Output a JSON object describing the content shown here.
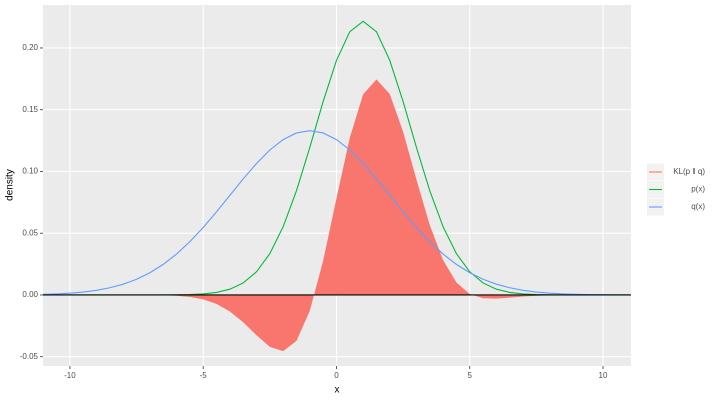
{
  "chart_data": {
    "type": "density",
    "x_label": "x",
    "y_label": "density",
    "x": [
      -11,
      -10.5,
      -10,
      -9.5,
      -9,
      -8.5,
      -8,
      -7.5,
      -7,
      -6.5,
      -6,
      -5.5,
      -5,
      -4.5,
      -4,
      -3.5,
      -3,
      -2.5,
      -2,
      -1.5,
      -1,
      -0.5,
      0,
      0.5,
      1,
      1.5,
      2,
      2.5,
      3,
      3.5,
      4,
      4.5,
      5,
      5.5,
      6,
      6.5,
      7,
      7.5,
      8,
      8.5,
      9,
      9.5,
      10,
      10.5,
      11
    ],
    "series": [
      {
        "name": "KL(p ‖ q)",
        "color": "#F8766D",
        "geom": "area",
        "values": [
          0,
          0,
          0,
          0,
          0,
          0,
          -1e-05,
          -3e-05,
          -8e-05,
          -0.00024,
          -0.00065,
          -0.0016,
          -0.00355,
          -0.00723,
          -0.01333,
          -0.02208,
          -0.03259,
          -0.042,
          -0.0455,
          -0.0372,
          -0.0128,
          0.02775,
          0.0782,
          0.1273,
          0.1624,
          0.1746,
          0.1626,
          0.1322,
          0.0935,
          0.0567,
          0.02823,
          0.01009,
          0.00078,
          -0.00261,
          -0.00293,
          -0.00215,
          -0.00127,
          -0.00065,
          -0.00029,
          -0.00012,
          -4e-05,
          -1e-05,
          0,
          0,
          0
        ]
      },
      {
        "name": "p(x)",
        "color": "#00BA38",
        "geom": "line",
        "values": [
          0,
          0,
          0,
          0,
          0,
          0,
          0,
          0,
          1e-05,
          4e-05,
          0.00012,
          0.00033,
          0.00086,
          0.00208,
          0.00468,
          0.00974,
          0.01877,
          0.03347,
          0.0553,
          0.08448,
          0.1195,
          0.1566,
          0.1899,
          0.2132,
          0.2216,
          0.2132,
          0.1899,
          0.1566,
          0.1195,
          0.08448,
          0.0553,
          0.03347,
          0.01877,
          0.00974,
          0.00468,
          0.00208,
          0.00086,
          0.00033,
          0.00012,
          4e-05,
          1e-05,
          0,
          0,
          0,
          0
        ]
      },
      {
        "name": "q(x)",
        "color": "#619CFF",
        "geom": "line",
        "values": [
          0.00051,
          0.00088,
          0.00148,
          0.0024,
          0.0038,
          0.00584,
          0.00874,
          0.01272,
          0.018,
          0.02477,
          0.03317,
          0.04319,
          0.05468,
          0.06734,
          0.08067,
          0.09398,
          0.1065,
          0.1174,
          0.1258,
          0.1312,
          0.133,
          0.1312,
          0.1258,
          0.1174,
          0.1065,
          0.094,
          0.08067,
          0.06734,
          0.05468,
          0.04319,
          0.03317,
          0.02477,
          0.018,
          0.01272,
          0.00874,
          0.00584,
          0.0038,
          0.0024,
          0.00148,
          0.00088,
          0.00051,
          0.00029,
          0.00016,
          9e-05,
          4e-05
        ]
      }
    ],
    "hline": 0,
    "hline_color": "#000000",
    "xlim": [
      -11.01,
      11.05
    ],
    "xticks": [
      -10,
      -5,
      0,
      5,
      10
    ],
    "ylim": [
      -0.0575,
      0.2348
    ],
    "yticks": [
      {
        "value": -0.05,
        "label": "-0.05"
      },
      {
        "value": 0,
        "label": "0.00"
      },
      {
        "value": 0.05,
        "label": "0.05"
      },
      {
        "value": 0.1,
        "label": "0.10"
      },
      {
        "value": 0.15,
        "label": "0.15"
      },
      {
        "value": 0.2,
        "label": "0.20"
      }
    ],
    "grid": true,
    "legend": "right"
  }
}
